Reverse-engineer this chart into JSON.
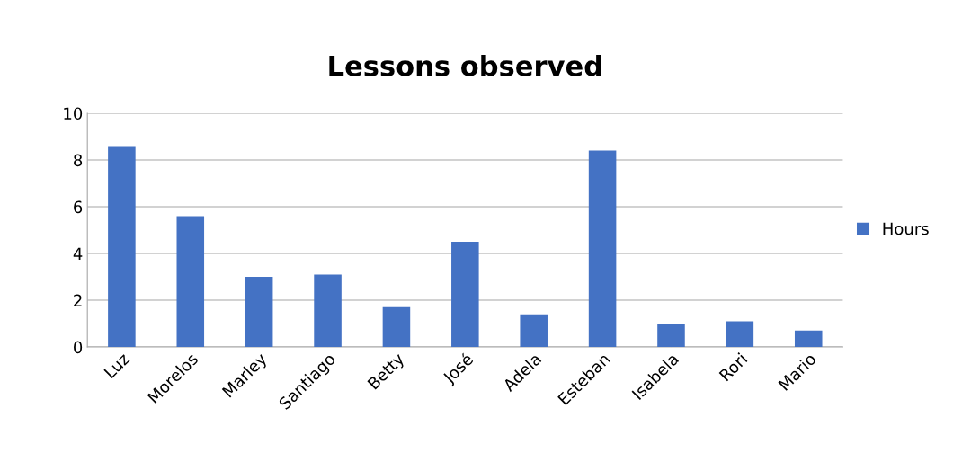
{
  "chart_data": {
    "type": "bar",
    "title": "Lessons observed",
    "categories": [
      "Luz",
      "Morelos",
      "Marley",
      "Santiago",
      "Betty",
      "José",
      "Adela",
      "Esteban",
      "Isabela",
      "Rori",
      "Mario"
    ],
    "series": [
      {
        "name": "Hours",
        "color": "#4472c4",
        "values": [
          8.6,
          5.6,
          3.0,
          3.1,
          1.7,
          4.5,
          1.4,
          8.4,
          1.0,
          1.1,
          0.7
        ]
      }
    ],
    "ylim": [
      0,
      10
    ],
    "yticks": [
      0,
      2,
      4,
      6,
      8,
      10
    ],
    "grid": "y",
    "legend": "right"
  }
}
